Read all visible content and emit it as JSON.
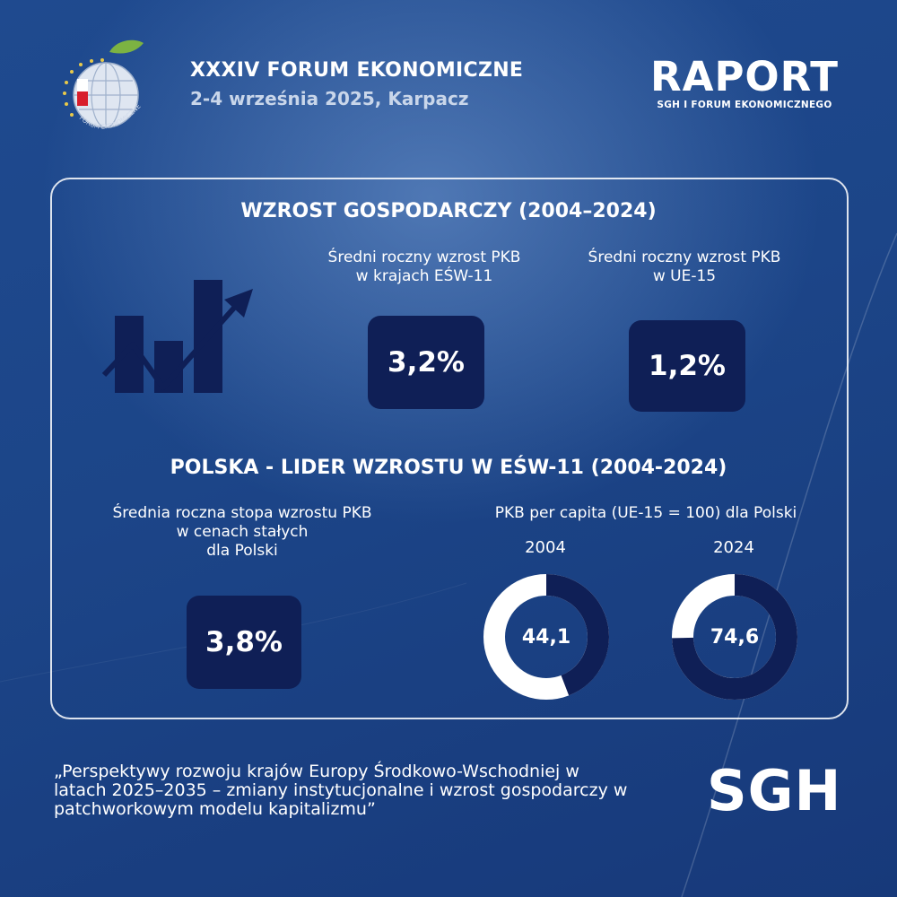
{
  "header": {
    "logo_caption": "FORUM EKONOMICZNE",
    "forum_title": "XXXIV FORUM EKONOMICZNE",
    "forum_subtitle": "2-4 września 2025, Karpacz",
    "raport_title": "RAPORT",
    "raport_subtitle": "SGH I FORUM EKONOMICZNEGO"
  },
  "section1": {
    "heading": "WZROST GOSPODARCZY (2004–2024)",
    "icon": "growth-chart-icon",
    "stats": [
      {
        "label": "Średni roczny wzrost PKB\nw krajach EŚW-11",
        "value": "3,2%"
      },
      {
        "label": "Średni roczny wzrost PKB\nw UE-15",
        "value": "1,2%"
      }
    ]
  },
  "section2": {
    "heading": "POLSKA - LIDER WZROSTU W EŚW-11 (2004-2024)",
    "growth_label": "Średnia roczna stopa wzrostu PKB\nw cenach stałych\ndla Polski",
    "growth_value": "3,8%",
    "per_capita_label": "PKB per capita (UE-15 = 100) dla Polski",
    "donuts": [
      {
        "year": "2004",
        "value_label": "44,1",
        "value": 44.1
      },
      {
        "year": "2024",
        "value_label": "74,6",
        "value": 74.6
      }
    ]
  },
  "footer": {
    "quote": "„Perspektywy rozwoju krajów Europy Środkowo-Wschodniej w latach 2025–2035 – zmiany instytucjonalne i wzrost gospodarczy w patchworkowym modelu kapitalizmu”",
    "brand": "SGH"
  },
  "colors": {
    "box": "#0f1f56",
    "ring_light": "#ffffff",
    "ring_dark": "#0f1f56",
    "background": "#1c4588"
  }
}
